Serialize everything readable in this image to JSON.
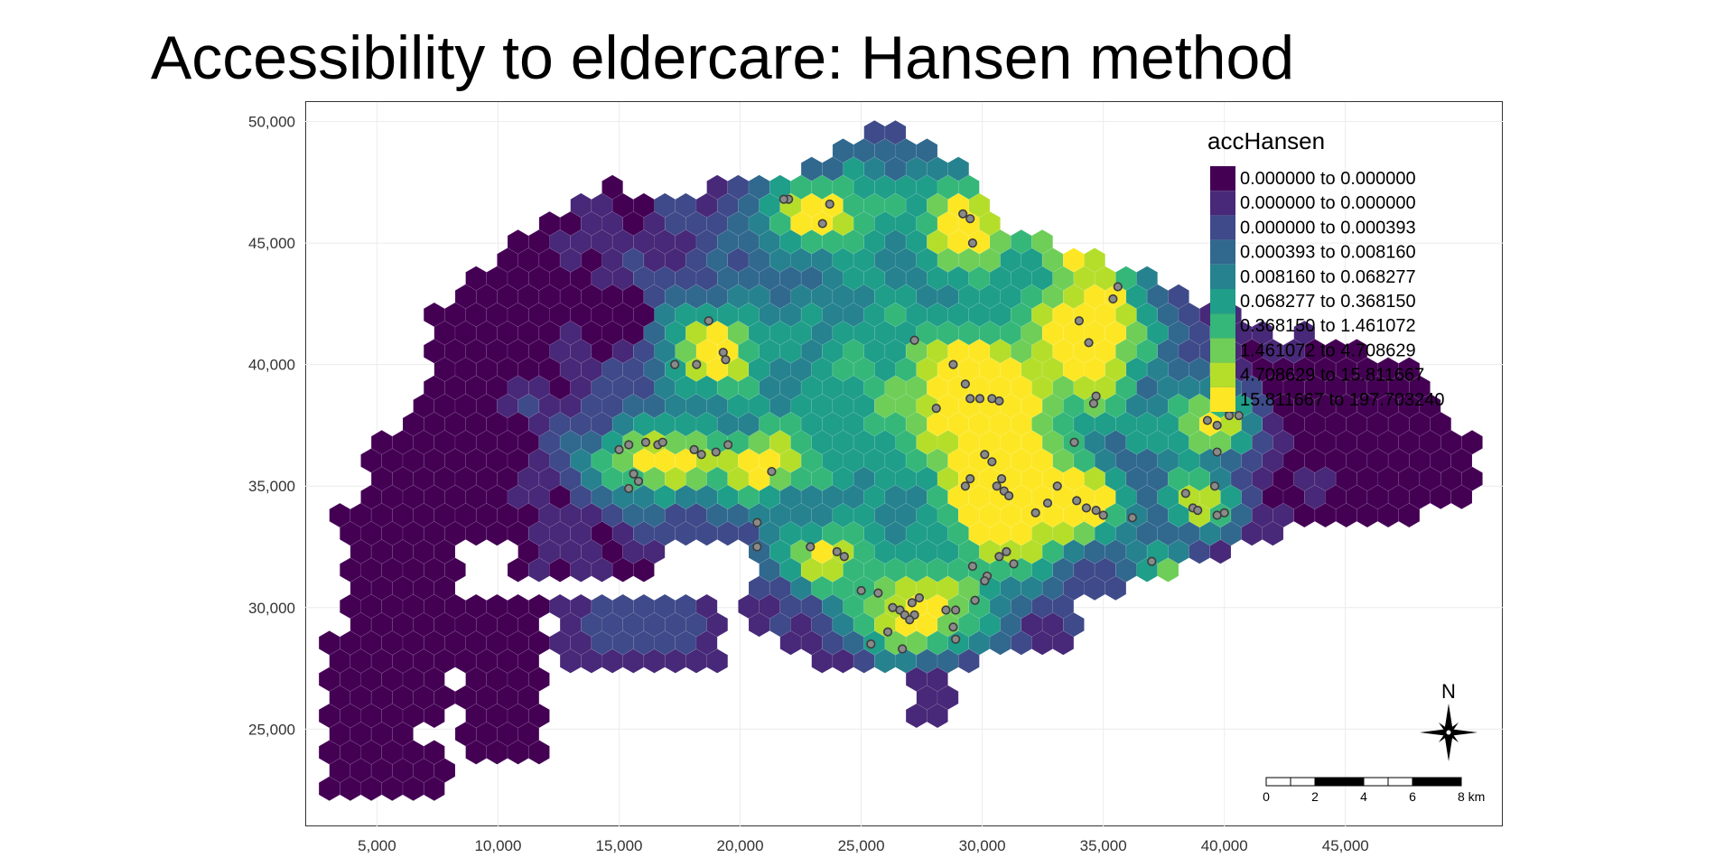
{
  "title": "Accessibility to eldercare: Hansen method",
  "chart_data": {
    "type": "heatmap",
    "title": "Accessibility to eldercare: Hansen method",
    "xlim": [
      2000,
      51500
    ],
    "ylim": [
      21000,
      50800
    ],
    "x_ticks": [
      5000,
      10000,
      15000,
      20000,
      25000,
      30000,
      35000,
      40000,
      45000
    ],
    "x_tick_labels": [
      "5,000",
      "10,000",
      "15,000",
      "20,000",
      "25,000",
      "30,000",
      "35,000",
      "40,000",
      "45,000"
    ],
    "y_ticks": [
      25000,
      30000,
      35000,
      40000,
      45000,
      50000
    ],
    "y_tick_labels": [
      "25,000",
      "30,000",
      "35,000",
      "40,000",
      "45,000",
      "50,000"
    ],
    "grid": true,
    "legend": {
      "title": "accHansen",
      "position": "top-right",
      "classes": [
        {
          "label": "0.000000 to 0.000000",
          "color": "#440154"
        },
        {
          "label": "0.000000 to 0.000000",
          "color": "#482878"
        },
        {
          "label": "0.000000 to 0.000393",
          "color": "#3e4a89"
        },
        {
          "label": "0.000393 to 0.008160",
          "color": "#31688e"
        },
        {
          "label": "0.008160 to 0.068277",
          "color": "#26828e"
        },
        {
          "label": "0.068277 to 0.368150",
          "color": "#1f9e89"
        },
        {
          "label": "0.368150 to 1.461072",
          "color": "#35b779"
        },
        {
          "label": "1.461072 to 4.708629",
          "color": "#6ece58"
        },
        {
          "label": "4.708629 to 15.811667",
          "color": "#b5de2b"
        },
        {
          "label": "15.811667 to 197.703240",
          "color": "#fde725"
        }
      ]
    },
    "eldercare_points": [
      [
        22000,
        46800
      ],
      [
        21800,
        46800
      ],
      [
        23700,
        46600
      ],
      [
        23400,
        45800
      ],
      [
        29200,
        46200
      ],
      [
        29500,
        46000
      ],
      [
        29600,
        45000
      ],
      [
        18700,
        41800
      ],
      [
        17300,
        40000
      ],
      [
        18200,
        40000
      ],
      [
        19300,
        40500
      ],
      [
        19400,
        40200
      ],
      [
        15000,
        36500
      ],
      [
        15400,
        36700
      ],
      [
        15600,
        35500
      ],
      [
        15800,
        35200
      ],
      [
        15400,
        34900
      ],
      [
        16100,
        36800
      ],
      [
        16600,
        36700
      ],
      [
        16800,
        36800
      ],
      [
        18100,
        36500
      ],
      [
        18400,
        36300
      ],
      [
        19000,
        36400
      ],
      [
        19500,
        36700
      ],
      [
        21300,
        35600
      ],
      [
        27200,
        41000
      ],
      [
        28800,
        40000
      ],
      [
        29300,
        39200
      ],
      [
        29500,
        38600
      ],
      [
        29900,
        38600
      ],
      [
        30400,
        38600
      ],
      [
        30700,
        38500
      ],
      [
        28100,
        38200
      ],
      [
        34000,
        41800
      ],
      [
        34400,
        40900
      ],
      [
        35400,
        42700
      ],
      [
        35600,
        43200
      ],
      [
        34700,
        38700
      ],
      [
        34600,
        38400
      ],
      [
        33800,
        36800
      ],
      [
        39300,
        37700
      ],
      [
        39700,
        37500
      ],
      [
        40200,
        38100
      ],
      [
        40600,
        37900
      ],
      [
        40200,
        37900
      ],
      [
        39700,
        36400
      ],
      [
        30100,
        36300
      ],
      [
        30400,
        36000
      ],
      [
        30800,
        35300
      ],
      [
        30600,
        35000
      ],
      [
        30900,
        34800
      ],
      [
        31100,
        34600
      ],
      [
        29500,
        35300
      ],
      [
        29300,
        35000
      ],
      [
        32200,
        33900
      ],
      [
        32700,
        34300
      ],
      [
        33100,
        35000
      ],
      [
        33900,
        34400
      ],
      [
        34300,
        34100
      ],
      [
        34700,
        34000
      ],
      [
        35000,
        33800
      ],
      [
        36200,
        33700
      ],
      [
        38400,
        34700
      ],
      [
        38700,
        34100
      ],
      [
        38900,
        34000
      ],
      [
        39600,
        35000
      ],
      [
        39700,
        33800
      ],
      [
        40000,
        33900
      ],
      [
        20700,
        33500
      ],
      [
        20700,
        32500
      ],
      [
        22900,
        32500
      ],
      [
        24000,
        32300
      ],
      [
        24300,
        32100
      ],
      [
        25700,
        30600
      ],
      [
        25000,
        30700
      ],
      [
        26300,
        30000
      ],
      [
        26600,
        29900
      ],
      [
        26800,
        29700
      ],
      [
        27100,
        30200
      ],
      [
        27400,
        30400
      ],
      [
        27200,
        29700
      ],
      [
        27000,
        29500
      ],
      [
        28500,
        29900
      ],
      [
        28900,
        29900
      ],
      [
        28800,
        29200
      ],
      [
        28900,
        28700
      ],
      [
        26700,
        28300
      ],
      [
        26100,
        29000
      ],
      [
        25400,
        28500
      ],
      [
        29700,
        30300
      ],
      [
        29600,
        31700
      ],
      [
        30700,
        32100
      ],
      [
        31000,
        32300
      ],
      [
        31300,
        31800
      ],
      [
        30200,
        31300
      ],
      [
        30100,
        31100
      ],
      [
        37000,
        31900
      ]
    ],
    "scale_bar": {
      "labels": [
        "0",
        "2",
        "4",
        "6",
        "8 km"
      ]
    },
    "north_arrow": {
      "label": "N"
    }
  }
}
